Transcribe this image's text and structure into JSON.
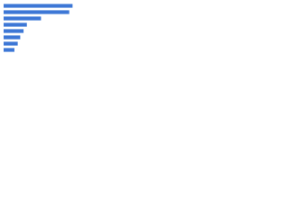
{
  "chart_data": {
    "type": "bar",
    "orientation": "horizontal",
    "categories": [
      null,
      null,
      null,
      null,
      null,
      null,
      null,
      null
    ],
    "values": [
      83,
      79,
      45,
      28,
      24,
      20,
      17,
      13
    ],
    "color": "#3d77d6",
    "xlim": [
      0,
      100
    ]
  }
}
